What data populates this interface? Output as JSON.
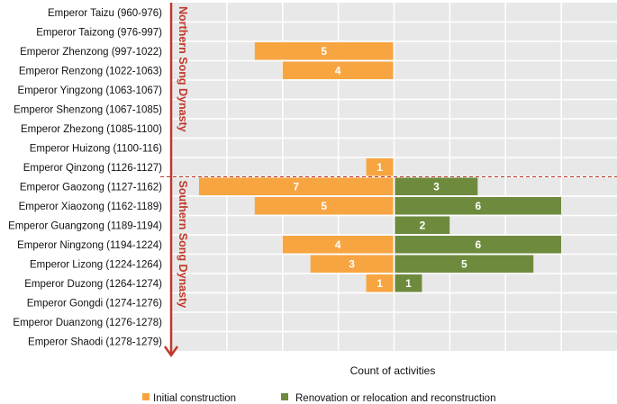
{
  "chart_data": {
    "type": "bar",
    "orientation": "horizontal-diverging",
    "categories": [
      "Emperor Taizu (960-976)",
      "Emperor Taizong (976-997)",
      "Emperor Zhenzong (997-1022)",
      "Emperor Renzong (1022-1063)",
      "Emperor Yingzong (1063-1067)",
      "Emperor Shenzong (1067-1085)",
      "Emperor Zhezong (1085-1100)",
      "Emperor Huizong (1100-116)",
      "Emperor Qinzong (1126-1127)",
      "Emperor Gaozong (1127-1162)",
      "Emperor Xiaozong (1162-1189)",
      "Emperor Guangzong (1189-1194)",
      "Emperor Ningzong (1194-1224)",
      "Emperor Lizong (1224-1264)",
      "Emperor Duzong (1264-1274)",
      "Emperor Gongdi (1274-1276)",
      "Emperor Duanzong (1276-1278)",
      "Emperor Shaodi (1278-1279)"
    ],
    "series": [
      {
        "name": "Initial construction",
        "color": "#f7a540",
        "direction": "left",
        "values": [
          0,
          0,
          5,
          4,
          0,
          0,
          0,
          0,
          1,
          7,
          5,
          0,
          4,
          3,
          1,
          0,
          0,
          0
        ]
      },
      {
        "name": "Renovation or relocation and reconstruction",
        "color": "#6e8b3d",
        "direction": "right",
        "values": [
          0,
          0,
          0,
          0,
          0,
          0,
          0,
          0,
          0,
          3,
          6,
          2,
          6,
          5,
          1,
          0,
          0,
          0
        ]
      }
    ],
    "xlabel": "Count of activities",
    "xlim": [
      -8,
      8
    ],
    "grid": true,
    "legend": "bottom",
    "groups": [
      {
        "label": "Northern Song Dynasty",
        "from": 0,
        "to": 8
      },
      {
        "label": "Southern Song Dynasty",
        "from": 9,
        "to": 17
      }
    ],
    "annotation_color": "#c0392b"
  }
}
